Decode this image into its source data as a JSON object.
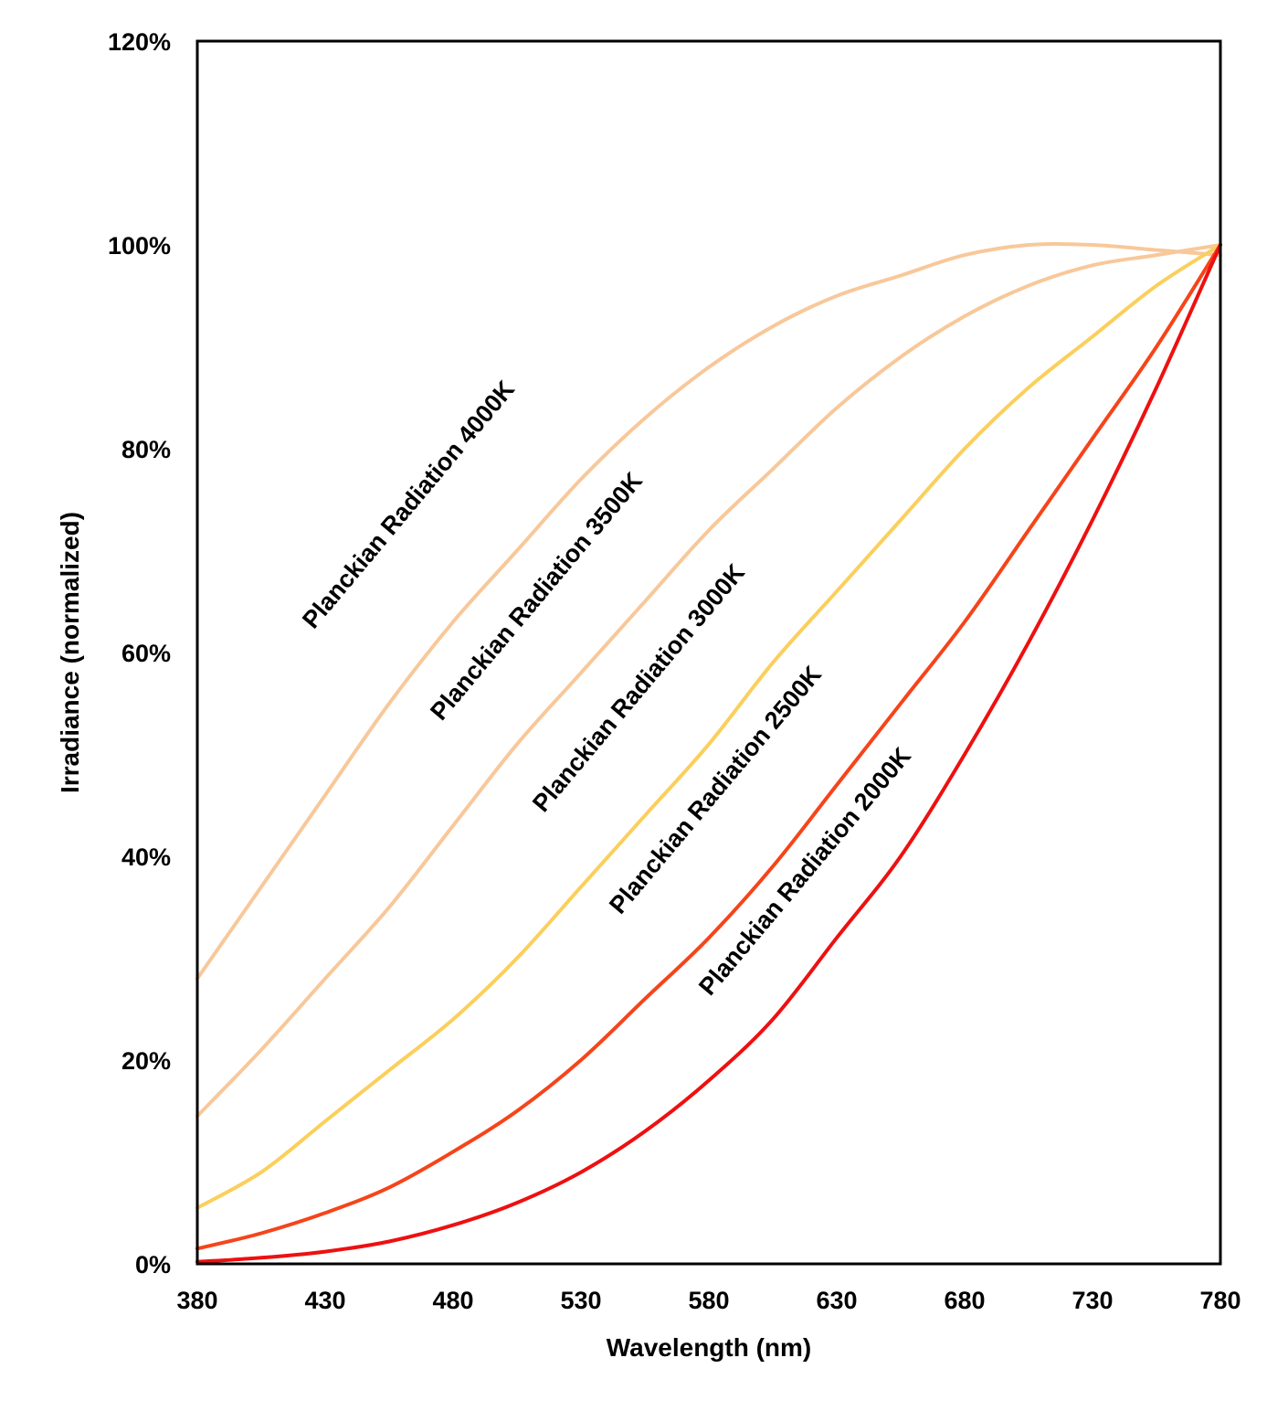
{
  "chart_data": {
    "type": "line",
    "title": "",
    "xlabel": "Wavelength (nm)",
    "ylabel": "Irradiance (normalized)",
    "xlim": [
      380,
      780
    ],
    "ylim": [
      0,
      1.2
    ],
    "xticks": [
      380,
      430,
      480,
      530,
      580,
      630,
      680,
      730,
      780
    ],
    "xtick_labels": [
      "380",
      "430",
      "480",
      "530",
      "580",
      "630",
      "680",
      "730",
      "780"
    ],
    "yticks": [
      0,
      0.2,
      0.4,
      0.6,
      0.8,
      1.0,
      1.2
    ],
    "ytick_labels": [
      "0%",
      "20%",
      "40%",
      "60%",
      "80%",
      "100%",
      "120%"
    ],
    "grid": false,
    "legend": "none",
    "x": [
      380,
      405,
      430,
      455,
      480,
      505,
      530,
      555,
      580,
      605,
      630,
      655,
      680,
      705,
      730,
      755,
      780
    ],
    "series": [
      {
        "name": "Planckian Radiation 4000K",
        "color": "#f8c89a",
        "values": [
          0.28,
          0.37,
          0.46,
          0.55,
          0.63,
          0.7,
          0.77,
          0.83,
          0.88,
          0.92,
          0.95,
          0.97,
          0.99,
          1.0,
          1.0,
          0.995,
          0.99
        ]
      },
      {
        "name": "Planckian Radiation 3500K",
        "color": "#f8c89a",
        "values": [
          0.145,
          0.21,
          0.28,
          0.35,
          0.43,
          0.51,
          0.58,
          0.65,
          0.72,
          0.78,
          0.84,
          0.89,
          0.93,
          0.96,
          0.98,
          0.99,
          1.0
        ]
      },
      {
        "name": "Planckian Radiation 3000K",
        "color": "#fbcf5c",
        "values": [
          0.055,
          0.09,
          0.14,
          0.19,
          0.24,
          0.3,
          0.37,
          0.44,
          0.51,
          0.59,
          0.66,
          0.73,
          0.8,
          0.86,
          0.91,
          0.96,
          1.0
        ]
      },
      {
        "name": "Planckian Radiation 2500K",
        "color": "#f6441a",
        "values": [
          0.015,
          0.03,
          0.05,
          0.075,
          0.11,
          0.15,
          0.2,
          0.26,
          0.32,
          0.39,
          0.47,
          0.55,
          0.63,
          0.72,
          0.81,
          0.9,
          1.0
        ]
      },
      {
        "name": "Planckian Radiation 2000K",
        "color": "#ee1010",
        "values": [
          0.002,
          0.006,
          0.012,
          0.022,
          0.038,
          0.06,
          0.09,
          0.13,
          0.18,
          0.24,
          0.32,
          0.4,
          0.5,
          0.61,
          0.73,
          0.86,
          1.0
        ]
      }
    ],
    "annotations": [
      {
        "text": "Planckian Radiation 4000K",
        "x": 465,
        "y": 0.74
      },
      {
        "text": "Planckian Radiation 3500K",
        "x": 515,
        "y": 0.65
      },
      {
        "text": "Planckian Radiation 3000K",
        "x": 555,
        "y": 0.56
      },
      {
        "text": "Planckian Radiation 2500K",
        "x": 585,
        "y": 0.46
      },
      {
        "text": "Planckian Radiation 2000K",
        "x": 620,
        "y": 0.38
      }
    ]
  }
}
